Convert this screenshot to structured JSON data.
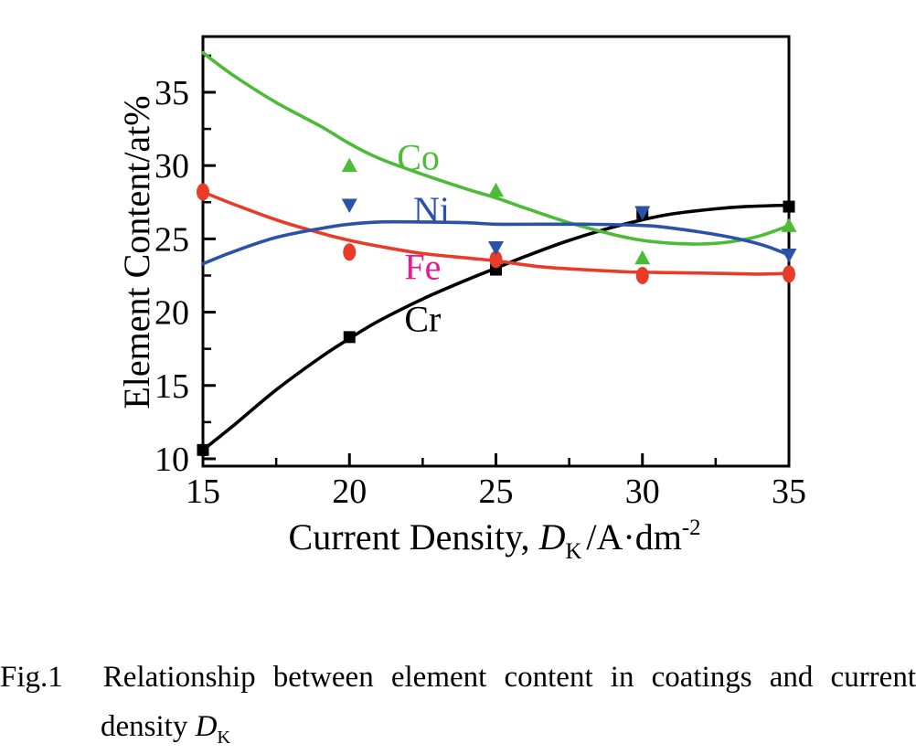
{
  "figure": {
    "y_axis_title": "Element Content/at%",
    "x_axis_title": {
      "prefix": "Current Density, ",
      "var": "D",
      "sub": "K",
      "unit": "/A·dm",
      "sup": "-2"
    },
    "caption": {
      "tag": "Fig.1",
      "line1": "Relationship between element content in coatings and current",
      "line2_prefix": "density ",
      "line2_var": "D",
      "line2_sub": "K"
    }
  },
  "chart_data": {
    "type": "line",
    "title": "",
    "xlabel": "Current Density, D_K /A·dm^-2",
    "ylabel": "Element Content/at%",
    "xlim": [
      15,
      35
    ],
    "ylim": [
      9.5,
      38.8
    ],
    "xticks": [
      15,
      20,
      25,
      30,
      35
    ],
    "yticks": [
      10,
      15,
      20,
      25,
      30,
      35
    ],
    "xticks_minor": [
      17.5,
      22.5,
      27.5,
      32.5
    ],
    "yticks_minor": [
      12.5,
      17.5,
      22.5,
      27.5,
      32.5,
      37.5
    ],
    "grid": false,
    "legend_position": "inline-annotations",
    "x": [
      15,
      20,
      25,
      30,
      35
    ],
    "series": [
      {
        "name": "Cr",
        "color": "#000000",
        "marker": "square",
        "values": [
          10.6,
          18.3,
          22.9,
          26.8,
          27.2
        ],
        "marker_points": [
          [
            15,
            10.6
          ],
          [
            20,
            18.3
          ],
          [
            25,
            22.9
          ],
          [
            30,
            26.75
          ],
          [
            35,
            27.2
          ]
        ],
        "line_points": [
          [
            15,
            10.6
          ],
          [
            16,
            12.2
          ],
          [
            17.5,
            14.7
          ],
          [
            19,
            16.9
          ],
          [
            20,
            18.2
          ],
          [
            21,
            19.4
          ],
          [
            22.5,
            20.9
          ],
          [
            24,
            22.2
          ],
          [
            25,
            23.0
          ],
          [
            26,
            23.8
          ],
          [
            27.5,
            24.9
          ],
          [
            29,
            25.8
          ],
          [
            30,
            26.3
          ],
          [
            31,
            26.7
          ],
          [
            32.5,
            27.05
          ],
          [
            33.5,
            27.2
          ],
          [
            35,
            27.3
          ]
        ],
        "annotation": {
          "text": "Cr",
          "x": 22.5,
          "y": 19.5,
          "color": "#000000"
        }
      },
      {
        "name": "Fe",
        "color": "#e93c28",
        "marker": "circle",
        "values": [
          28.2,
          24.1,
          23.6,
          22.5,
          22.6
        ],
        "marker_points": [
          [
            15,
            28.2
          ],
          [
            20,
            24.1
          ],
          [
            25,
            23.6
          ],
          [
            30,
            22.5
          ],
          [
            35,
            22.6
          ]
        ],
        "line_points": [
          [
            15,
            28.2
          ],
          [
            16,
            27.4
          ],
          [
            17.5,
            26.3
          ],
          [
            19,
            25.4
          ],
          [
            20,
            24.9
          ],
          [
            21,
            24.5
          ],
          [
            22.5,
            24.0
          ],
          [
            24,
            23.7
          ],
          [
            25,
            23.5
          ],
          [
            26.5,
            23.1
          ],
          [
            28,
            22.9
          ],
          [
            29.5,
            22.75
          ],
          [
            31,
            22.7
          ],
          [
            32.5,
            22.65
          ],
          [
            34,
            22.6
          ],
          [
            35,
            22.65
          ]
        ],
        "annotation": {
          "text": "Fe",
          "x": 22.5,
          "y": 23.05,
          "color": "#e7198c"
        }
      },
      {
        "name": "Co",
        "color": "#4cbb36",
        "marker": "triangle-up",
        "values": [
          37.7,
          30.0,
          28.3,
          23.7,
          25.9
        ],
        "marker_points": [
          [
            20,
            30.0
          ],
          [
            25,
            28.3
          ],
          [
            30,
            23.7
          ],
          [
            35,
            25.9
          ]
        ],
        "line_points": [
          [
            15,
            37.7
          ],
          [
            16,
            36.2
          ],
          [
            17.5,
            34.3
          ],
          [
            19,
            32.7
          ],
          [
            20,
            31.5
          ],
          [
            21,
            30.5
          ],
          [
            22.5,
            29.4
          ],
          [
            24,
            28.4
          ],
          [
            25,
            27.8
          ],
          [
            26,
            27.1
          ],
          [
            27.5,
            26.1
          ],
          [
            29,
            25.3
          ],
          [
            30,
            24.9
          ],
          [
            31,
            24.7
          ],
          [
            32,
            24.65
          ],
          [
            33,
            24.8
          ],
          [
            34,
            25.2
          ],
          [
            35,
            25.9
          ]
        ],
        "annotation": {
          "text": "Co",
          "x": 22.35,
          "y": 30.55,
          "color": "#4cbb36"
        }
      },
      {
        "name": "Ni",
        "color": "#2a52a8",
        "marker": "triangle-down",
        "values": [
          23.3,
          27.3,
          24.4,
          26.8,
          23.9
        ],
        "marker_points": [
          [
            20,
            27.3
          ],
          [
            25,
            24.4
          ],
          [
            30,
            26.8
          ],
          [
            35,
            23.9
          ]
        ],
        "line_points": [
          [
            15,
            23.3
          ],
          [
            16,
            24.1
          ],
          [
            17.5,
            25.1
          ],
          [
            19,
            25.7
          ],
          [
            20,
            26.0
          ],
          [
            21,
            26.15
          ],
          [
            22.5,
            26.15
          ],
          [
            24,
            26.1
          ],
          [
            25,
            26.0
          ],
          [
            26.5,
            26.0
          ],
          [
            28,
            26.0
          ],
          [
            29.5,
            25.95
          ],
          [
            30.5,
            25.85
          ],
          [
            31.5,
            25.6
          ],
          [
            32.5,
            25.3
          ],
          [
            33.5,
            24.9
          ],
          [
            34.3,
            24.45
          ],
          [
            35,
            23.9
          ]
        ],
        "annotation": {
          "text": "Ni",
          "x": 22.8,
          "y": 26.95,
          "color": "#2a52a8"
        }
      }
    ]
  }
}
